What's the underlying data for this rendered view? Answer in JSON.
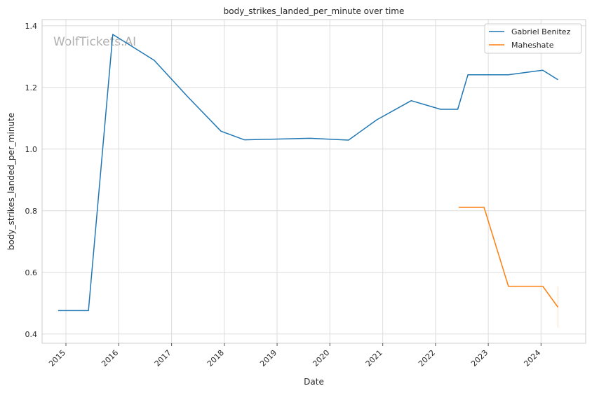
{
  "watermark": "WolfTickets.AI",
  "chart_data": {
    "type": "line",
    "title": "body_strikes_landed_per_minute over time",
    "xlabel": "Date",
    "ylabel": "body_strikes_landed_per_minute",
    "xlim": [
      "2014-07-20",
      "2024-11-05"
    ],
    "ylim": [
      0.37,
      1.42
    ],
    "x_ticks": [
      "2015",
      "2016",
      "2017",
      "2018",
      "2019",
      "2020",
      "2021",
      "2022",
      "2023",
      "2024"
    ],
    "y_ticks": [
      0.4,
      0.6,
      0.8,
      1.0,
      1.2,
      1.4
    ],
    "y_tick_labels": [
      "0.4",
      "0.6",
      "0.8",
      "1.0",
      "1.2",
      "1.4"
    ],
    "grid": true,
    "legend_position": "top-right",
    "series": [
      {
        "name": "Gabriel Benitez",
        "color": "#1f77b4",
        "points": [
          {
            "x": "2014-11-08",
            "y": 0.476
          },
          {
            "x": "2015-06-06",
            "y": 0.476
          },
          {
            "x": "2015-11-21",
            "y": 1.372
          },
          {
            "x": "2016-09-03",
            "y": 1.288
          },
          {
            "x": "2017-04-22",
            "y": 1.17
          },
          {
            "x": "2017-12-09",
            "y": 1.058
          },
          {
            "x": "2018-05-19",
            "y": 1.03
          },
          {
            "x": "2019-08-17",
            "y": 1.035
          },
          {
            "x": "2020-05-09",
            "y": 1.029
          },
          {
            "x": "2020-11-21",
            "y": 1.095
          },
          {
            "x": "2021-07-17",
            "y": 1.157
          },
          {
            "x": "2022-02-05",
            "y": 1.129
          },
          {
            "x": "2022-06-04",
            "y": 1.129
          },
          {
            "x": "2022-08-13",
            "y": 1.241
          },
          {
            "x": "2023-05-20",
            "y": 1.241
          },
          {
            "x": "2024-01-13",
            "y": 1.256
          },
          {
            "x": "2024-04-27",
            "y": 1.225
          }
        ]
      },
      {
        "name": "Maheshate",
        "color": "#ff7f0e",
        "points": [
          {
            "x": "2022-06-11",
            "y": 0.811
          },
          {
            "x": "2022-12-03",
            "y": 0.811
          },
          {
            "x": "2023-05-20",
            "y": 0.555
          },
          {
            "x": "2024-01-13",
            "y": 0.555
          },
          {
            "x": "2024-04-27",
            "y": 0.487
          }
        ],
        "error_band": {
          "x": "2024-04-27",
          "y_low": 0.42,
          "y_high": 0.555
        }
      }
    ]
  }
}
